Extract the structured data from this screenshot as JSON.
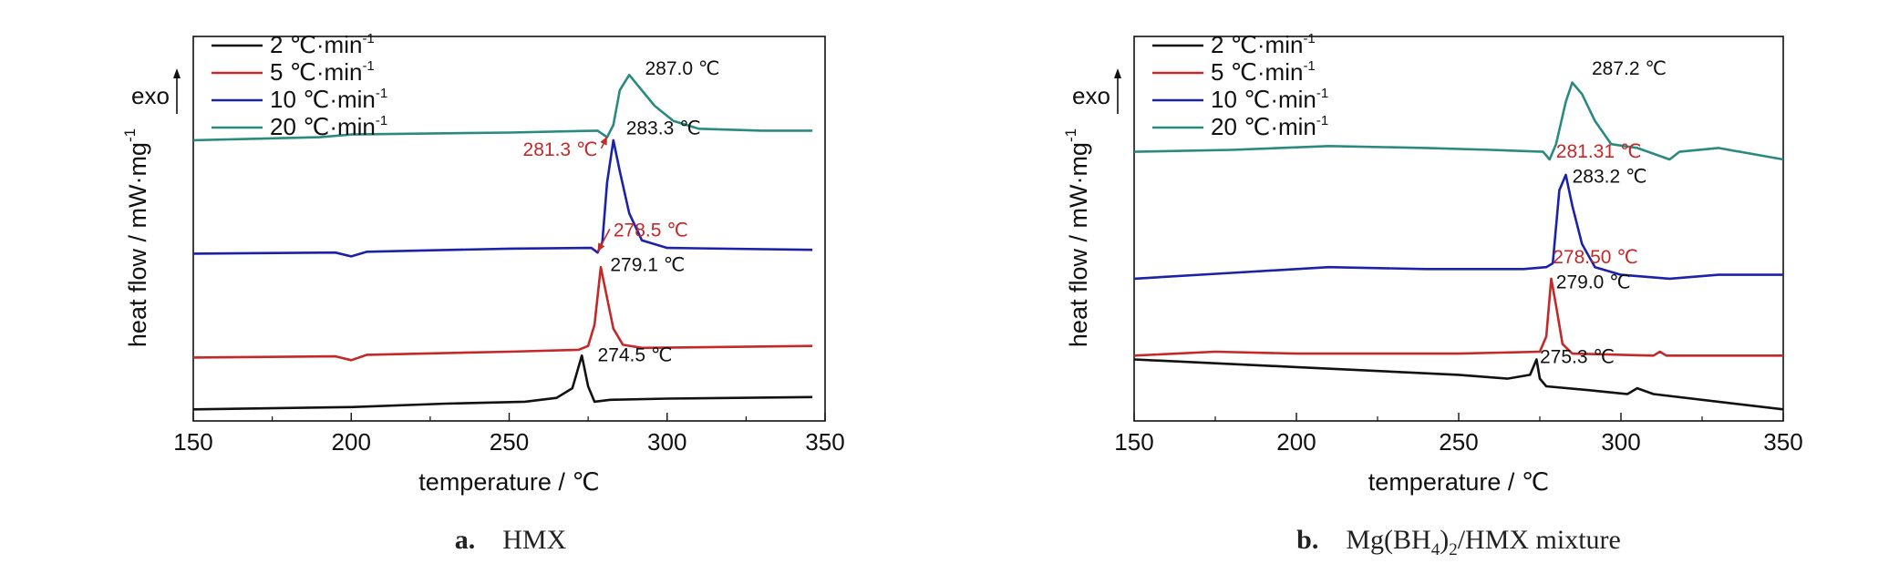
{
  "chart_data": [
    {
      "id": "a",
      "type": "line",
      "caption_letter": "a.",
      "caption_text": "HMX",
      "xlabel": "temperature / ℃",
      "ylabel": "heat flow / mW·mg",
      "ylabel_sup": "-1",
      "xlim": [
        150,
        350
      ],
      "xticks": [
        150,
        200,
        250,
        300,
        350
      ],
      "ylim": [
        0,
        1
      ],
      "exo_label": "exo",
      "legend_position": "top-left",
      "series": [
        {
          "name": "2 ℃·min",
          "sup": "-1",
          "color": "#111111",
          "points": [
            [
              150,
              0.03
            ],
            [
              200,
              0.036
            ],
            [
              230,
              0.045
            ],
            [
              255,
              0.05
            ],
            [
              265,
              0.06
            ],
            [
              270,
              0.085
            ],
            [
              273,
              0.17
            ],
            [
              275,
              0.09
            ],
            [
              277,
              0.05
            ],
            [
              282,
              0.055
            ],
            [
              300,
              0.058
            ],
            [
              346,
              0.062
            ]
          ]
        },
        {
          "name": "5 ℃·min",
          "sup": "-1",
          "color": "#c42828",
          "points": [
            [
              150,
              0.165
            ],
            [
              195,
              0.168
            ],
            [
              200,
              0.158
            ],
            [
              205,
              0.172
            ],
            [
              250,
              0.18
            ],
            [
              272,
              0.185
            ],
            [
              275,
              0.195
            ],
            [
              277,
              0.25
            ],
            [
              279,
              0.4
            ],
            [
              281,
              0.32
            ],
            [
              283,
              0.24
            ],
            [
              286,
              0.198
            ],
            [
              292,
              0.19
            ],
            [
              346,
              0.195
            ]
          ]
        },
        {
          "name": "10 ℃·min",
          "sup": "-1",
          "color": "#1c22a8",
          "points": [
            [
              150,
              0.435
            ],
            [
              195,
              0.438
            ],
            [
              200,
              0.428
            ],
            [
              205,
              0.44
            ],
            [
              250,
              0.448
            ],
            [
              276,
              0.45
            ],
            [
              278,
              0.438
            ],
            [
              279.5,
              0.465
            ],
            [
              281,
              0.62
            ],
            [
              283,
              0.73
            ],
            [
              285,
              0.65
            ],
            [
              288,
              0.54
            ],
            [
              292,
              0.47
            ],
            [
              300,
              0.45
            ],
            [
              346,
              0.445
            ]
          ]
        },
        {
          "name": "20 ℃·min",
          "sup": "-1",
          "color": "#2a8a80",
          "points": [
            [
              150,
              0.73
            ],
            [
              190,
              0.738
            ],
            [
              200,
              0.745
            ],
            [
              250,
              0.75
            ],
            [
              278,
              0.755
            ],
            [
              281,
              0.738
            ],
            [
              283,
              0.77
            ],
            [
              285,
              0.86
            ],
            [
              288,
              0.9
            ],
            [
              291,
              0.87
            ],
            [
              296,
              0.82
            ],
            [
              302,
              0.78
            ],
            [
              310,
              0.76
            ],
            [
              330,
              0.755
            ],
            [
              346,
              0.755
            ]
          ]
        }
      ],
      "annotations": [
        {
          "text": "287.0 ℃",
          "x": 293,
          "y": 0.9,
          "color": "#111111"
        },
        {
          "text": "283.3 ℃",
          "x": 287,
          "y": 0.745,
          "color": "#111111"
        },
        {
          "text": "281.3 ℃",
          "x": 278,
          "y": 0.69,
          "color": "#c42828",
          "anchor": "end",
          "arrow_to": [
            281,
            0.74
          ]
        },
        {
          "text": "278.5 ℃",
          "x": 283,
          "y": 0.48,
          "color": "#c42828",
          "arrow_to": [
            278,
            0.44
          ]
        },
        {
          "text": "279.1 ℃",
          "x": 282,
          "y": 0.39,
          "color": "#111111"
        },
        {
          "text": "274.5 ℃",
          "x": 278,
          "y": 0.155,
          "color": "#111111"
        }
      ]
    },
    {
      "id": "b",
      "type": "line",
      "caption_letter": "b.",
      "caption_text": "Mg(BH",
      "caption_sub1": "4",
      "caption_mid": ")",
      "caption_sub2": "2",
      "caption_tail": "/HMX mixture",
      "xlabel": "temperature / ℃",
      "ylabel": "heat flow / mW·mg",
      "ylabel_sup": "-1",
      "xlim": [
        150,
        350
      ],
      "xticks": [
        150,
        200,
        250,
        300,
        350
      ],
      "ylim": [
        0,
        1
      ],
      "exo_label": "exo",
      "legend_position": "top-left",
      "series": [
        {
          "name": "2 ℃·min",
          "sup": "-1",
          "color": "#111111",
          "points": [
            [
              150,
              0.16
            ],
            [
              200,
              0.14
            ],
            [
              250,
              0.12
            ],
            [
              265,
              0.11
            ],
            [
              272,
              0.12
            ],
            [
              274,
              0.16
            ],
            [
              275,
              0.11
            ],
            [
              277,
              0.09
            ],
            [
              290,
              0.08
            ],
            [
              302,
              0.07
            ],
            [
              305,
              0.085
            ],
            [
              310,
              0.07
            ],
            [
              330,
              0.05
            ],
            [
              350,
              0.03
            ]
          ]
        },
        {
          "name": "5 ℃·min",
          "sup": "-1",
          "color": "#c42828",
          "points": [
            [
              150,
              0.17
            ],
            [
              175,
              0.18
            ],
            [
              200,
              0.175
            ],
            [
              250,
              0.175
            ],
            [
              275,
              0.18
            ],
            [
              277,
              0.22
            ],
            [
              278.5,
              0.37
            ],
            [
              280,
              0.3
            ],
            [
              282,
              0.2
            ],
            [
              285,
              0.175
            ],
            [
              310,
              0.17
            ],
            [
              312,
              0.18
            ],
            [
              314,
              0.17
            ],
            [
              350,
              0.17
            ]
          ]
        },
        {
          "name": "10 ℃·min",
          "sup": "-1",
          "color": "#1c22a8",
          "points": [
            [
              150,
              0.37
            ],
            [
              180,
              0.385
            ],
            [
              210,
              0.4
            ],
            [
              240,
              0.395
            ],
            [
              270,
              0.395
            ],
            [
              277,
              0.4
            ],
            [
              279,
              0.41
            ],
            [
              281,
              0.6
            ],
            [
              283,
              0.64
            ],
            [
              285,
              0.56
            ],
            [
              288,
              0.46
            ],
            [
              292,
              0.4
            ],
            [
              300,
              0.38
            ],
            [
              315,
              0.37
            ],
            [
              330,
              0.38
            ],
            [
              350,
              0.38
            ]
          ]
        },
        {
          "name": "20 ℃·min",
          "sup": "-1",
          "color": "#2a8a80",
          "points": [
            [
              150,
              0.7
            ],
            [
              180,
              0.705
            ],
            [
              210,
              0.715
            ],
            [
              240,
              0.71
            ],
            [
              260,
              0.705
            ],
            [
              276,
              0.7
            ],
            [
              278,
              0.68
            ],
            [
              280,
              0.72
            ],
            [
              283,
              0.83
            ],
            [
              285,
              0.88
            ],
            [
              288,
              0.85
            ],
            [
              292,
              0.78
            ],
            [
              297,
              0.72
            ],
            [
              305,
              0.71
            ],
            [
              315,
              0.68
            ],
            [
              318,
              0.7
            ],
            [
              330,
              0.71
            ],
            [
              350,
              0.68
            ]
          ]
        }
      ],
      "annotations": [
        {
          "text": "287.2 ℃",
          "x": 291,
          "y": 0.9,
          "color": "#111111"
        },
        {
          "text": "281.31 ℃",
          "x": 280,
          "y": 0.685,
          "color": "#c42828"
        },
        {
          "text": "283.2 ℃",
          "x": 285,
          "y": 0.62,
          "color": "#111111"
        },
        {
          "text": "278.50 ℃",
          "x": 279,
          "y": 0.41,
          "color": "#c42828"
        },
        {
          "text": "279.0 ℃",
          "x": 280,
          "y": 0.345,
          "color": "#111111"
        },
        {
          "text": "275.3 ℃",
          "x": 275,
          "y": 0.15,
          "color": "#111111"
        }
      ]
    }
  ]
}
